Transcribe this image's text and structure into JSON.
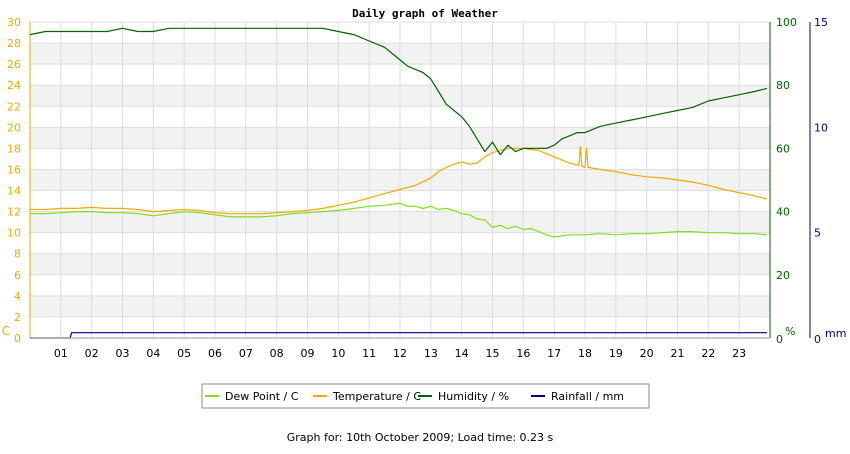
{
  "chart_data": {
    "type": "line",
    "title": "Daily graph of Weather",
    "x_ticks": [
      "01",
      "02",
      "03",
      "04",
      "05",
      "06",
      "07",
      "08",
      "09",
      "10",
      "11",
      "12",
      "13",
      "14",
      "15",
      "16",
      "17",
      "18",
      "19",
      "20",
      "21",
      "22",
      "23"
    ],
    "x_range_hours": [
      0,
      24
    ],
    "left_axis": {
      "unit": "C",
      "ticks": [
        0,
        2,
        4,
        6,
        8,
        10,
        12,
        14,
        16,
        18,
        20,
        22,
        24,
        26,
        28,
        30
      ],
      "range": [
        0,
        30
      ],
      "color": "#f2a900"
    },
    "humidity_axis": {
      "unit": "%",
      "ticks": [
        0,
        20,
        40,
        60,
        80,
        100
      ],
      "range": [
        0,
        100
      ],
      "color": "#006400"
    },
    "rain_axis": {
      "unit": "mm",
      "ticks": [
        0,
        5,
        10,
        15
      ],
      "range": [
        0,
        15
      ],
      "color": "#00008b"
    },
    "grid": true,
    "legend_position": "bottom",
    "series": [
      {
        "name": "Dew Point / C",
        "color": "#7be01a",
        "axis": "left",
        "x": [
          0,
          0.5,
          1,
          1.5,
          2,
          2.5,
          3,
          3.5,
          4,
          4.5,
          5,
          5.5,
          6,
          6.5,
          7,
          7.5,
          8,
          8.5,
          9,
          9.5,
          10,
          10.5,
          11,
          11.5,
          12,
          12.25,
          12.5,
          12.75,
          13,
          13.25,
          13.5,
          13.75,
          14,
          14.25,
          14.5,
          14.75,
          15,
          15.25,
          15.5,
          15.75,
          16,
          16.25,
          16.5,
          16.75,
          17,
          17.5,
          18,
          18.5,
          19,
          19.5,
          20,
          20.5,
          21,
          21.5,
          22,
          22.5,
          23,
          23.5,
          23.9
        ],
        "y": [
          11.8,
          11.8,
          11.9,
          12.0,
          12.0,
          11.9,
          11.9,
          11.8,
          11.6,
          11.8,
          12.0,
          11.9,
          11.7,
          11.5,
          11.5,
          11.5,
          11.6,
          11.8,
          11.9,
          12.0,
          12.1,
          12.3,
          12.5,
          12.6,
          12.8,
          12.5,
          12.5,
          12.3,
          12.5,
          12.2,
          12.3,
          12.1,
          11.8,
          11.7,
          11.3,
          11.2,
          10.5,
          10.7,
          10.4,
          10.6,
          10.3,
          10.4,
          10.1,
          9.8,
          9.6,
          9.8,
          9.8,
          9.9,
          9.8,
          9.9,
          9.9,
          10.0,
          10.1,
          10.1,
          10.0,
          10.0,
          9.9,
          9.9,
          9.8
        ]
      },
      {
        "name": "Temperature / C",
        "color": "#f2a900",
        "axis": "left",
        "x": [
          0,
          0.5,
          1,
          1.5,
          2,
          2.5,
          3,
          3.5,
          4,
          4.5,
          5,
          5.5,
          6,
          6.5,
          7,
          7.5,
          8,
          8.5,
          9,
          9.5,
          10,
          10.5,
          11,
          11.5,
          12,
          12.5,
          13,
          13.25,
          13.5,
          13.75,
          14,
          14.25,
          14.5,
          14.75,
          15,
          15.25,
          15.5,
          15.75,
          16,
          16.25,
          16.5,
          16.75,
          17,
          17.5,
          17.8,
          17.85,
          17.9,
          18,
          18.05,
          18.1,
          18.5,
          19,
          19.5,
          20,
          20.5,
          21,
          21.5,
          22,
          22.5,
          23,
          23.5,
          23.9
        ],
        "y": [
          12.2,
          12.2,
          12.3,
          12.3,
          12.4,
          12.3,
          12.3,
          12.2,
          12.0,
          12.1,
          12.2,
          12.1,
          11.9,
          11.8,
          11.8,
          11.8,
          11.9,
          12.0,
          12.1,
          12.3,
          12.6,
          12.9,
          13.3,
          13.7,
          14.1,
          14.5,
          15.2,
          15.8,
          16.2,
          16.5,
          16.7,
          16.5,
          16.6,
          17.2,
          17.6,
          17.8,
          18.0,
          18.0,
          18.0,
          17.9,
          17.8,
          17.5,
          17.2,
          16.6,
          16.4,
          18.2,
          16.3,
          16.2,
          18.0,
          16.2,
          16.0,
          15.8,
          15.5,
          15.3,
          15.2,
          15.0,
          14.8,
          14.5,
          14.1,
          13.8,
          13.5,
          13.2
        ]
      },
      {
        "name": "Humidity / %",
        "color": "#006400",
        "axis": "humidity",
        "x": [
          0,
          0.5,
          1,
          1.5,
          2,
          2.5,
          3,
          3.5,
          4,
          4.5,
          5,
          5.5,
          6,
          6.5,
          7,
          7.5,
          8,
          8.5,
          9,
          9.5,
          10,
          10.5,
          11,
          11.5,
          12,
          12.25,
          12.5,
          12.75,
          13,
          13.25,
          13.5,
          13.75,
          14,
          14.25,
          14.5,
          14.75,
          15,
          15.25,
          15.5,
          15.75,
          16,
          16.25,
          16.5,
          16.75,
          17,
          17.25,
          17.5,
          17.75,
          18,
          18.25,
          18.5,
          19,
          19.5,
          20,
          20.5,
          21,
          21.5,
          22,
          22.5,
          23,
          23.5,
          23.9
        ],
        "y": [
          96,
          97,
          97,
          97,
          97,
          97,
          98,
          97,
          97,
          98,
          98,
          98,
          98,
          98,
          98,
          98,
          98,
          98,
          98,
          98,
          97,
          96,
          94,
          92,
          88,
          86,
          85,
          84,
          82,
          78,
          74,
          72,
          70,
          67,
          63,
          59,
          62,
          58,
          61,
          59,
          60,
          60,
          60,
          60,
          61,
          63,
          64,
          65,
          65,
          66,
          67,
          68,
          69,
          70,
          71,
          72,
          73,
          75,
          76,
          77,
          78,
          79
        ]
      },
      {
        "name": "Rainfall / mm",
        "color": "#00008b",
        "axis": "rain",
        "x": [
          0,
          1.3,
          1.35,
          23.9
        ],
        "y": [
          0,
          0,
          0.25,
          0.25
        ]
      }
    ]
  },
  "footer": "Graph for: 10th October 2009; Load time: 0.23 s"
}
